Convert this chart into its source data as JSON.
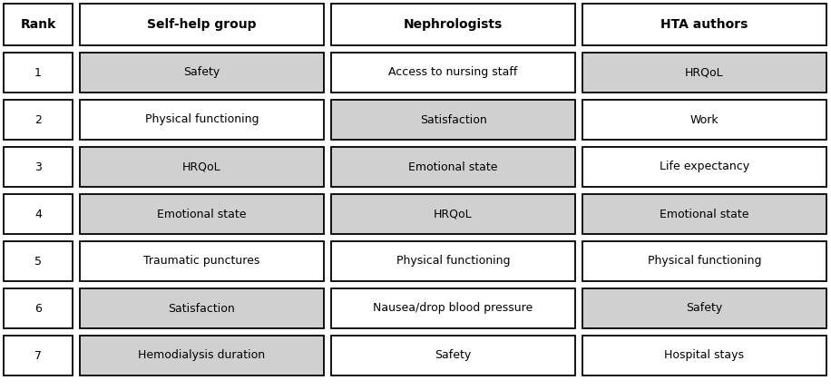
{
  "headers": [
    "Rank",
    "Self-help group",
    "Nephrologists",
    "HTA authors"
  ],
  "ranks": [
    1,
    2,
    3,
    4,
    5,
    6,
    7
  ],
  "self_help": [
    "Safety",
    "Physical functioning",
    "HRQoL",
    "Emotional state",
    "Traumatic punctures",
    "Satisfaction",
    "Hemodialysis duration"
  ],
  "self_help_shaded": [
    true,
    false,
    true,
    true,
    false,
    true,
    true
  ],
  "nephrologists": [
    "Access to nursing staff",
    "Satisfaction",
    "Emotional state",
    "HRQoL",
    "Physical functioning",
    "Nausea/drop blood pressure",
    "Safety"
  ],
  "nephrologists_shaded": [
    false,
    true,
    true,
    true,
    false,
    false,
    false
  ],
  "hta_authors": [
    "HRQoL",
    "Work",
    "Life expectancy",
    "Emotional state",
    "Physical functioning",
    "Safety",
    "Hospital stays"
  ],
  "hta_authors_shaded": [
    true,
    false,
    false,
    true,
    false,
    true,
    false
  ],
  "shaded_color": "#d0d0d0",
  "white_color": "#ffffff",
  "border_color": "#000000",
  "text_color": "#000000",
  "font_size": 9.0,
  "header_font_size": 10.0
}
